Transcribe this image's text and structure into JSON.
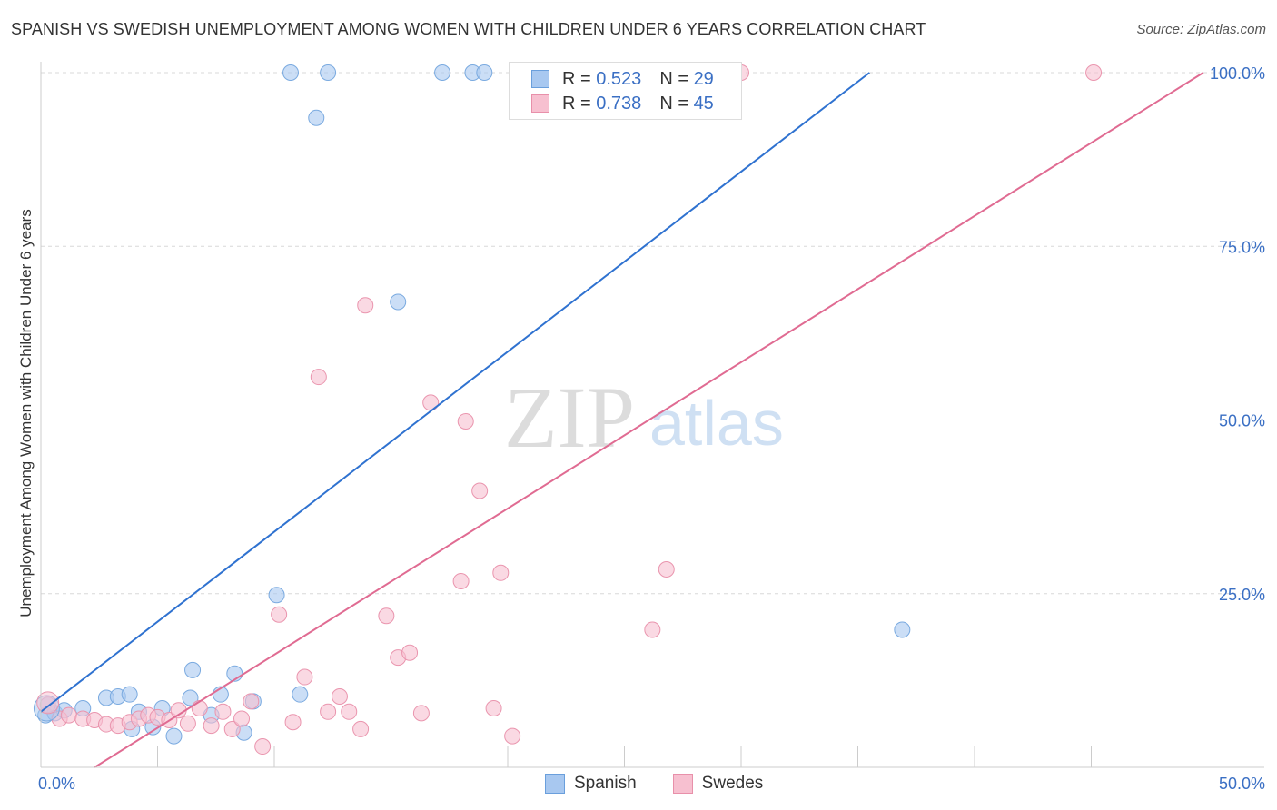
{
  "title": "SPANISH VS SWEDISH UNEMPLOYMENT AMONG WOMEN WITH CHILDREN UNDER 6 YEARS CORRELATION CHART",
  "source": "Source: ZipAtlas.com",
  "watermark": {
    "zip": "ZIP",
    "atlas": "atlas"
  },
  "legend_stats": [
    {
      "r_label": "R = ",
      "r_value": "0.523",
      "n_label": "N = ",
      "n_value": "29",
      "color": "#a8c8f0",
      "border": "#6a9fdc"
    },
    {
      "r_label": "R = ",
      "r_value": "0.738",
      "n_label": "N = ",
      "n_value": "45",
      "color": "#f7c0d0",
      "border": "#e890aa"
    }
  ],
  "colors": {
    "spanish_fill": "#a8c8f0",
    "spanish_stroke": "#7aaae0",
    "spanish_line": "#2f72d0",
    "swedes_fill": "#f7c0d0",
    "swedes_stroke": "#ea95ae",
    "swedes_line": "#e06b92",
    "tick_label": "#3a6fc4",
    "grid": "#d8d8d8"
  },
  "chart_data": {
    "type": "scatter",
    "ylabel": "Unemployment Among Women with Children Under 6 years",
    "xlim": [
      0,
      50
    ],
    "ylim": [
      0,
      100
    ],
    "x_tick_labels": [
      "0.0%",
      "50.0%"
    ],
    "y_ticks": [
      25,
      50,
      75,
      100
    ],
    "y_tick_labels": [
      "25.0%",
      "50.0%",
      "75.0%",
      "100.0%"
    ],
    "x_minor_ticks": [
      5,
      10,
      15,
      20,
      25,
      30,
      35,
      40,
      45
    ],
    "grid": true,
    "legend_position": "top-center",
    "series": [
      {
        "name": "Spanish",
        "trend": {
          "x": [
            0.0,
            35.5
          ],
          "y": [
            8.0,
            100.0
          ]
        },
        "points": [
          [
            0.2,
            7.5
          ],
          [
            0.6,
            7.8
          ],
          [
            1.0,
            8.2
          ],
          [
            1.8,
            8.5
          ],
          [
            2.8,
            10.0
          ],
          [
            3.3,
            10.2
          ],
          [
            3.8,
            10.5
          ],
          [
            3.9,
            5.5
          ],
          [
            4.2,
            8.0
          ],
          [
            4.8,
            5.8
          ],
          [
            5.2,
            8.5
          ],
          [
            5.7,
            4.5
          ],
          [
            6.4,
            10.0
          ],
          [
            6.5,
            14.0
          ],
          [
            7.3,
            7.5
          ],
          [
            7.7,
            10.5
          ],
          [
            8.3,
            13.5
          ],
          [
            8.7,
            5.0
          ],
          [
            9.1,
            9.5
          ],
          [
            10.1,
            24.8
          ],
          [
            11.1,
            10.5
          ],
          [
            11.8,
            93.5
          ],
          [
            15.3,
            67.0
          ],
          [
            10.7,
            100.0
          ],
          [
            12.3,
            100.0
          ],
          [
            17.2,
            100.0
          ],
          [
            18.5,
            100.0
          ],
          [
            19.0,
            100.0
          ],
          [
            36.9,
            19.8
          ]
        ]
      },
      {
        "name": "Swedes",
        "trend": {
          "x": [
            2.3,
            49.8
          ],
          "y": [
            0.0,
            100.0
          ]
        },
        "points": [
          [
            0.3,
            9.0
          ],
          [
            0.8,
            7.0
          ],
          [
            1.2,
            7.5
          ],
          [
            1.8,
            7.0
          ],
          [
            2.3,
            6.8
          ],
          [
            2.8,
            6.2
          ],
          [
            3.3,
            6.0
          ],
          [
            3.8,
            6.5
          ],
          [
            4.2,
            7.0
          ],
          [
            4.6,
            7.5
          ],
          [
            5.0,
            7.2
          ],
          [
            5.5,
            6.8
          ],
          [
            5.9,
            8.2
          ],
          [
            6.3,
            6.3
          ],
          [
            6.8,
            8.5
          ],
          [
            7.3,
            6.0
          ],
          [
            7.8,
            8.0
          ],
          [
            8.2,
            5.5
          ],
          [
            8.6,
            7.0
          ],
          [
            9.0,
            9.5
          ],
          [
            9.5,
            3.0
          ],
          [
            10.2,
            22.0
          ],
          [
            10.8,
            6.5
          ],
          [
            11.3,
            13.0
          ],
          [
            12.3,
            8.0
          ],
          [
            12.8,
            10.2
          ],
          [
            13.2,
            8.0
          ],
          [
            13.7,
            5.5
          ],
          [
            13.9,
            66.5
          ],
          [
            11.9,
            56.2
          ],
          [
            14.8,
            21.8
          ],
          [
            15.3,
            15.8
          ],
          [
            15.8,
            16.5
          ],
          [
            16.3,
            7.8
          ],
          [
            16.7,
            52.5
          ],
          [
            18.0,
            26.8
          ],
          [
            18.2,
            49.8
          ],
          [
            18.8,
            39.8
          ],
          [
            19.4,
            8.5
          ],
          [
            19.7,
            28.0
          ],
          [
            20.2,
            4.5
          ],
          [
            26.2,
            19.8
          ],
          [
            26.8,
            28.5
          ],
          [
            30.0,
            100.0
          ],
          [
            45.1,
            100.0
          ]
        ]
      }
    ]
  },
  "bottom_legend": [
    {
      "label": "Spanish",
      "color": "#a8c8f0",
      "border": "#6a9fdc"
    },
    {
      "label": "Swedes",
      "color": "#f7c0d0",
      "border": "#e890aa"
    }
  ]
}
